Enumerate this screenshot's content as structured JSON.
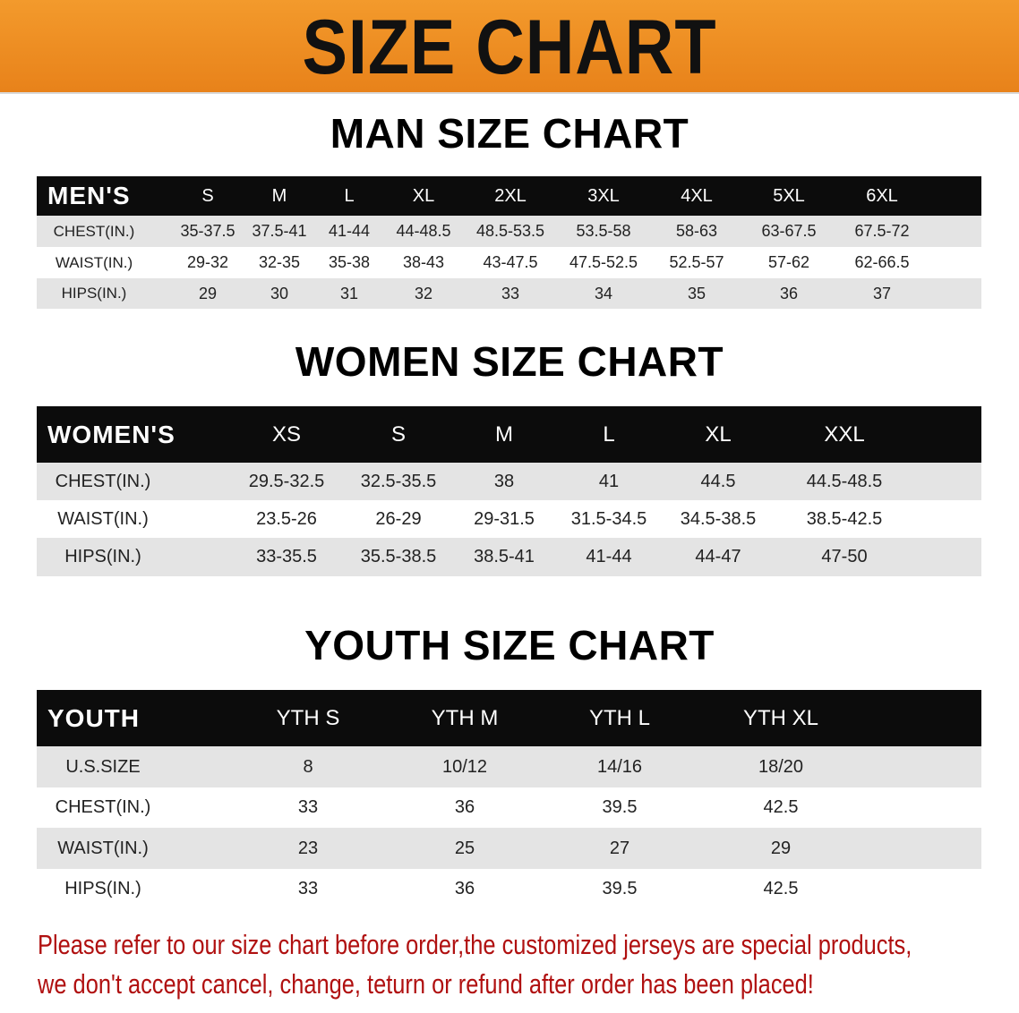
{
  "banner_title": "SIZE CHART",
  "colors": {
    "banner": "#ee8a20",
    "header_row": "#0c0c0c",
    "stripe": "#e4e4e4",
    "note": "#b01010"
  },
  "men": {
    "title": "MAN SIZE CHART",
    "header": [
      "MEN'S",
      "S",
      "M",
      "L",
      "XL",
      "2XL",
      "3XL",
      "4XL",
      "5XL",
      "6XL"
    ],
    "rows": [
      [
        "CHEST(IN.)",
        "35-37.5",
        "37.5-41",
        "41-44",
        "44-48.5",
        "48.5-53.5",
        "53.5-58",
        "58-63",
        "63-67.5",
        "67.5-72"
      ],
      [
        "WAIST(IN.)",
        "29-32",
        "32-35",
        "35-38",
        "38-43",
        "43-47.5",
        "47.5-52.5",
        "52.5-57",
        "57-62",
        "62-66.5"
      ],
      [
        "HIPS(IN.)",
        "29",
        "30",
        "31",
        "32",
        "33",
        "34",
        "35",
        "36",
        "37"
      ]
    ]
  },
  "women": {
    "title": "WOMEN SIZE CHART",
    "header": [
      "WOMEN'S",
      "XS",
      "S",
      "M",
      "L",
      "XL",
      "XXL"
    ],
    "rows": [
      [
        "CHEST(IN.)",
        "29.5-32.5",
        "32.5-35.5",
        "38",
        "41",
        "44.5",
        "44.5-48.5"
      ],
      [
        "WAIST(IN.)",
        "23.5-26",
        "26-29",
        "29-31.5",
        "31.5-34.5",
        "34.5-38.5",
        "38.5-42.5"
      ],
      [
        "HIPS(IN.)",
        "33-35.5",
        "35.5-38.5",
        "38.5-41",
        "41-44",
        "44-47",
        "47-50"
      ]
    ]
  },
  "youth": {
    "title": "YOUTH SIZE CHART",
    "header": [
      "YOUTH",
      "YTH S",
      "YTH M",
      "YTH L",
      "YTH XL"
    ],
    "rows": [
      [
        "U.S.SIZE",
        "8",
        "10/12",
        "14/16",
        "18/20"
      ],
      [
        "CHEST(IN.)",
        "33",
        "36",
        "39.5",
        "42.5"
      ],
      [
        "WAIST(IN.)",
        "23",
        "25",
        "27",
        "29"
      ],
      [
        "HIPS(IN.)",
        "33",
        "36",
        "39.5",
        "42.5"
      ]
    ]
  },
  "note": {
    "line1": "Please refer to our size chart before order,the customized jerseys are special products,",
    "line2": "we don't accept cancel, change, teturn or refund after order has been placed!"
  }
}
